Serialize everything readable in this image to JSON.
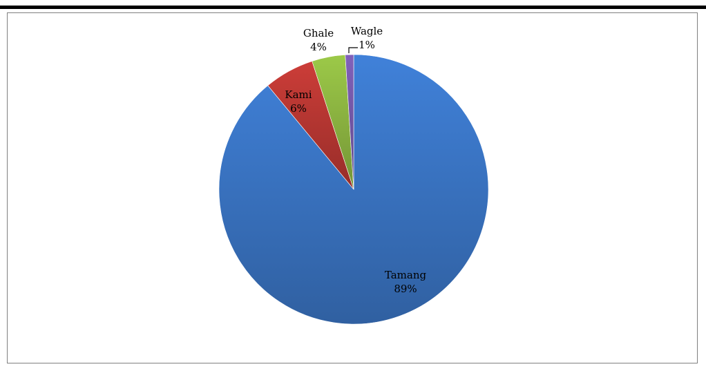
{
  "chart_data": {
    "type": "pie",
    "title": "",
    "slices": [
      {
        "label": "Tamang",
        "value": 89,
        "percent_label": "89%",
        "color": "#3d7bcf"
      },
      {
        "label": "Kami",
        "value": 6,
        "percent_label": "6%",
        "color": "#c23a35"
      },
      {
        "label": "Ghale",
        "value": 4,
        "percent_label": "4%",
        "color": "#95bf45"
      },
      {
        "label": "Wagle",
        "value": 1,
        "percent_label": "1%",
        "color": "#7b5cb1"
      }
    ],
    "start_angle_deg": 0,
    "direction": "clockwise",
    "legend": "none"
  }
}
